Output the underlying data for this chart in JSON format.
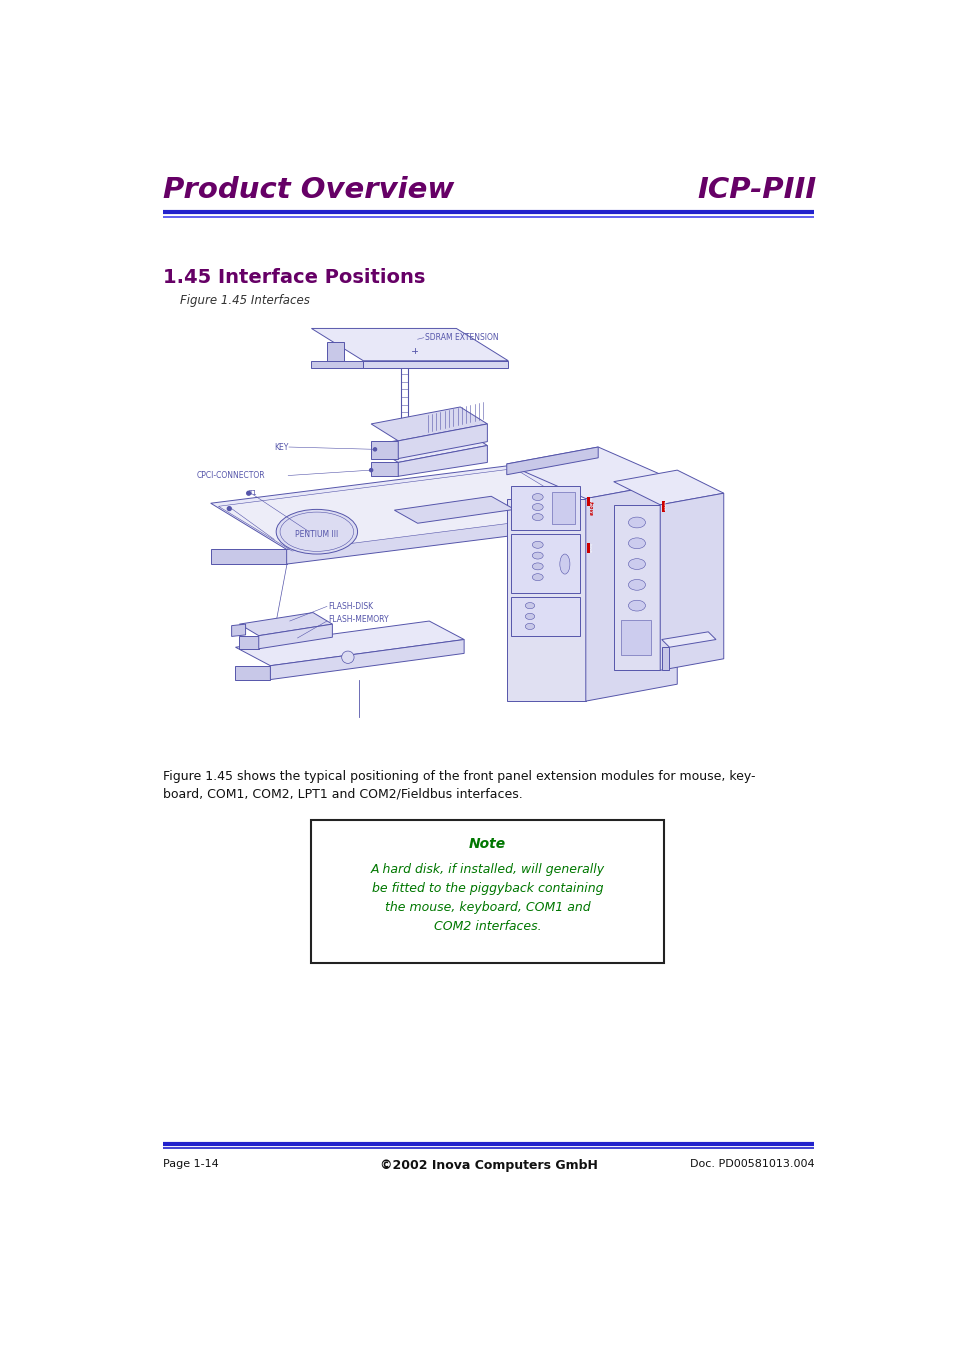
{
  "page_width": 9.54,
  "page_height": 13.51,
  "bg_color": "#ffffff",
  "header_title_left": "Product Overview",
  "header_title_right": "ICP-PIII",
  "header_color": "#660066",
  "header_line_color1": "#2222cc",
  "header_line_color2": "#4444ee",
  "section_title": "1.45 Interface Positions",
  "section_title_color": "#660066",
  "figure_caption": "Figure 1.45 Interfaces",
  "body_text_line1": "Figure 1.45 shows the typical positioning of the front panel extension modules for mouse, key-",
  "body_text_line2": "board, COM1, COM2, LPT1 and COM2/Fieldbus interfaces.",
  "note_title": "Note",
  "note_body": "A hard disk, if installed, will generally\nbe fitted to the piggyback containing\nthe mouse, keyboard, COM1 and\nCOM2 interfaces.",
  "note_color": "#007700",
  "footer_left": "Page 1-14",
  "footer_center": "©2002 Inova Computers GmbH",
  "footer_right": "Doc. PD00581013.004",
  "footer_line_color": "#2222cc",
  "diagram_ec": "#5555aa",
  "diagram_fc_light": "#e8e8f8",
  "diagram_fc_mid": "#d8d8f0",
  "diagram_fc_dark": "#c8c8e8",
  "text_label_color": "#5555aa",
  "inova_color": "#cc0000"
}
